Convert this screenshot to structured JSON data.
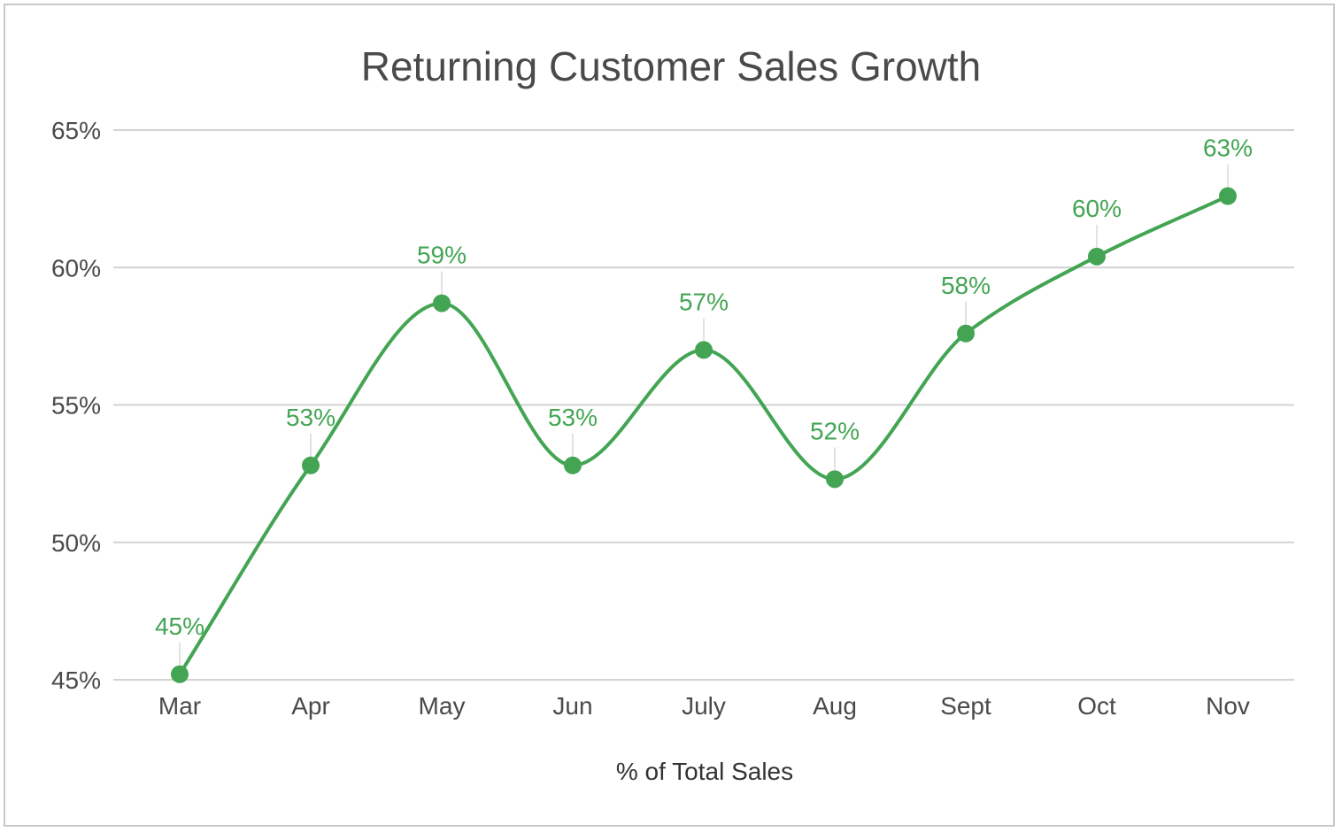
{
  "chart_data": {
    "type": "line",
    "title": "Returning Customer Sales Growth",
    "xlabel": "% of Total Sales",
    "ylabel": "",
    "categories": [
      "Mar",
      "Apr",
      "May",
      "Jun",
      "July",
      "Aug",
      "Sept",
      "Oct",
      "Nov"
    ],
    "series": [
      {
        "values": [
          45.2,
          52.8,
          58.7,
          52.8,
          57.0,
          52.3,
          57.6,
          60.4,
          62.6
        ],
        "data_labels": [
          "45%",
          "53%",
          "59%",
          "53%",
          "57%",
          "52%",
          "58%",
          "60%",
          "63%"
        ],
        "color": "#43a553"
      }
    ],
    "ylim": [
      45,
      65
    ],
    "yticks": [
      45,
      50,
      55,
      60,
      65
    ],
    "ytick_labels": [
      "45%",
      "50%",
      "55%",
      "60%",
      "65%"
    ],
    "grid": true,
    "smooth": true,
    "legend": "none"
  }
}
